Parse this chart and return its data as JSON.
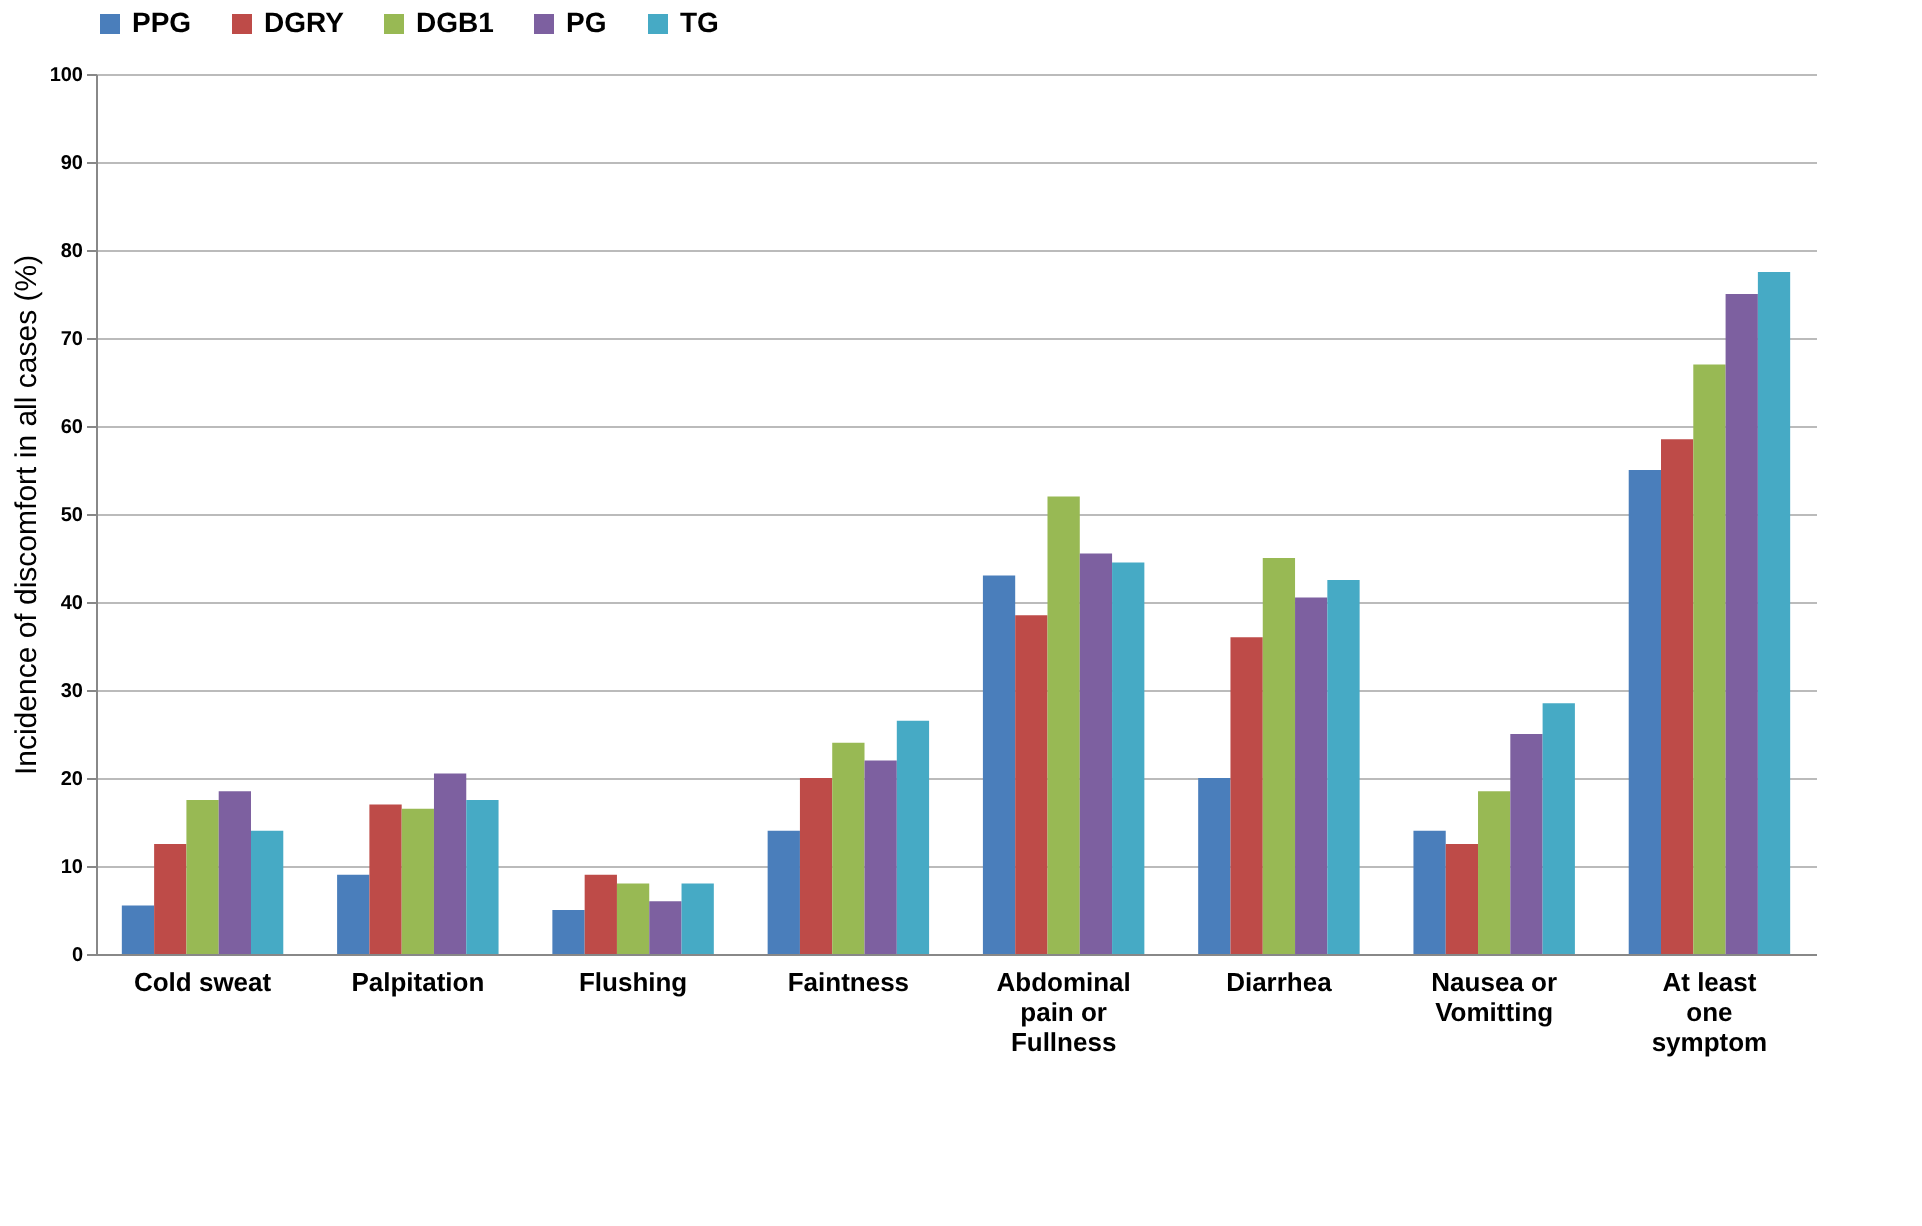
{
  "chart_data": {
    "type": "bar",
    "ylabel": "Incidence of discomfort in all cases (%)",
    "categories": [
      "Cold sweat",
      "Palpitation",
      "Flushing",
      "Faintness",
      "Abdominal\npain or\nFullness",
      "Diarrhea",
      "Nausea or\nVomitting",
      "At least\none\nsymptom"
    ],
    "series": [
      {
        "name": "PPG",
        "color": "#4a7ebb",
        "values": [
          5.5,
          9,
          5,
          14,
          43,
          20,
          14,
          55
        ]
      },
      {
        "name": "DGRY",
        "color": "#be4b48",
        "values": [
          12.5,
          17,
          9,
          20,
          38.5,
          36,
          12.5,
          58.5
        ]
      },
      {
        "name": "DGB1",
        "color": "#98b954",
        "values": [
          17.5,
          16.5,
          8,
          24,
          52,
          45,
          18.5,
          67
        ]
      },
      {
        "name": "PG",
        "color": "#7d60a0",
        "values": [
          18.5,
          20.5,
          6,
          22,
          45.5,
          40.5,
          25,
          75
        ]
      },
      {
        "name": "TG",
        "color": "#46aac5",
        "values": [
          14,
          17.5,
          8,
          26.5,
          44.5,
          42.5,
          28.5,
          77.5
        ]
      }
    ],
    "ylim": [
      0,
      100
    ],
    "yticks": [
      0,
      10,
      20,
      30,
      40,
      50,
      60,
      70,
      80,
      90,
      100
    ],
    "grid": "y",
    "legend": "top"
  }
}
